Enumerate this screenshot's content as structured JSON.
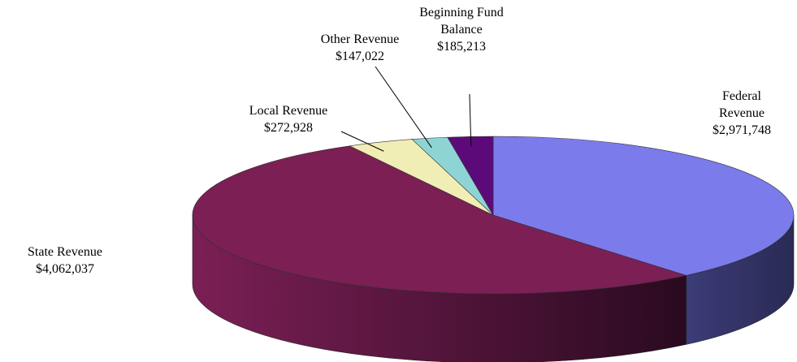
{
  "chart_data": {
    "type": "pie3d",
    "categories": [
      "Federal Revenue",
      "State Revenue",
      "Local Revenue",
      "Other Revenue",
      "Beginning Fund Balance"
    ],
    "values": [
      2971748,
      4062037,
      272928,
      147022,
      185213
    ],
    "value_labels": [
      "$2,971,748",
      "$4,062,037",
      "$272,928",
      "$147,022",
      "$185,213"
    ],
    "colors": [
      "#7b7bec",
      "#7b1f55",
      "#f0eeb4",
      "#8fd4d4",
      "#5c0a7a"
    ]
  }
}
